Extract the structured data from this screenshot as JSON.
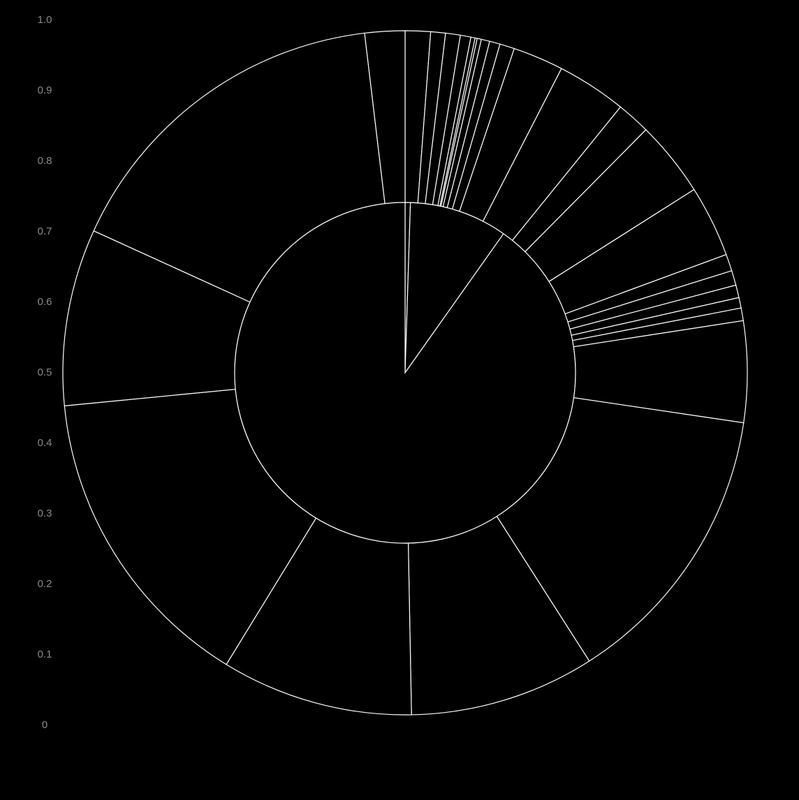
{
  "chart_data": {
    "type": "sunburst",
    "title": "",
    "y_axis": {
      "ticks": [
        "0",
        "0.1",
        "0.2",
        "0.3",
        "0.4",
        "0.5",
        "0.6",
        "0.7",
        "0.8",
        "0.9",
        "1.0"
      ],
      "ylim": [
        0,
        1
      ]
    },
    "rings": [
      {
        "name": "",
        "values": [
          0.005,
          0.093,
          0.902
        ]
      },
      {
        "name": "",
        "values": [
          0.012,
          0.007,
          0.007,
          0.005,
          0.002,
          0.001,
          0.002,
          0.004,
          0.005,
          0.007,
          0.024,
          0.033,
          0.016,
          0.036,
          0.034,
          0.008,
          0.007,
          0.006,
          0.005,
          0.006,
          0.048,
          0.137,
          0.088,
          0.091,
          0.148,
          0.084,
          0.164,
          0.019
        ]
      }
    ],
    "colors": {
      "background": "#000000",
      "stroke": "#ffffff",
      "fill": "#000000",
      "tick": "#8a8a8a"
    }
  }
}
